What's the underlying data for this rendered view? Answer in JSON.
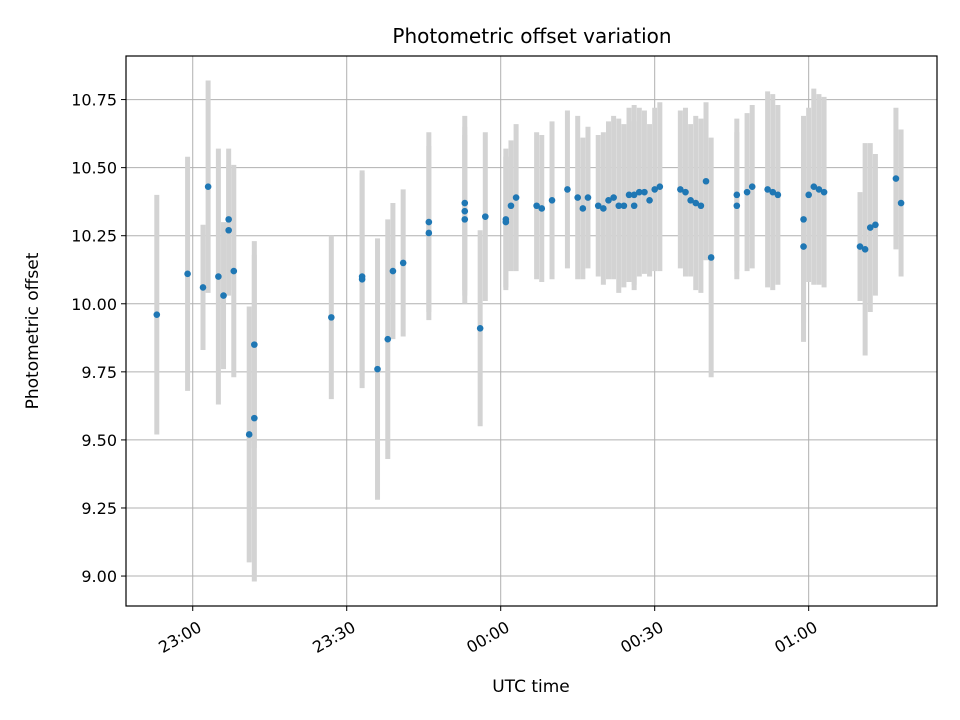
{
  "chart_data": {
    "type": "scatter",
    "title": "Photometric offset variation",
    "xlabel": "UTC time",
    "ylabel": "Photometric offset",
    "x_tick_labels": [
      "23:00",
      "23:30",
      "00:00",
      "00:30",
      "01:00"
    ],
    "y_tick_labels": [
      "9.00",
      "9.25",
      "9.50",
      "9.75",
      "10.00",
      "10.25",
      "10.50",
      "10.75"
    ],
    "xlim": [
      "22:47",
      "01:25"
    ],
    "ylim": [
      8.89,
      10.91
    ],
    "grid": true,
    "colors": {
      "marker": "#1f77b4",
      "errorbar": "#d3d3d3",
      "grid": "#b0b0b0"
    },
    "series": [
      {
        "x": [
          "22:53",
          "22:59",
          "23:02",
          "23:03",
          "23:05",
          "23:06",
          "23:07",
          "23:07",
          "23:08",
          "23:11",
          "23:12",
          "23:12",
          "23:27",
          "23:33",
          "23:33",
          "23:36",
          "23:38",
          "23:39",
          "23:41",
          "23:46",
          "23:46",
          "23:53",
          "23:53",
          "23:53",
          "23:56",
          "23:57",
          "00:01",
          "00:01",
          "00:02",
          "00:03",
          "00:07",
          "00:08",
          "00:10",
          "00:13",
          "00:15",
          "00:16",
          "00:17",
          "00:19",
          "00:20",
          "00:21",
          "00:22",
          "00:23",
          "00:24",
          "00:25",
          "00:26",
          "00:26",
          "00:27",
          "00:28",
          "00:29",
          "00:30",
          "00:31",
          "00:35",
          "00:36",
          "00:37",
          "00:38",
          "00:39",
          "00:40",
          "00:41",
          "00:46",
          "00:46",
          "00:48",
          "00:49",
          "00:52",
          "00:53",
          "00:54",
          "00:59",
          "00:59",
          "01:00",
          "01:01",
          "01:02",
          "01:03",
          "01:10",
          "01:11",
          "01:12",
          "01:13",
          "01:17",
          "01:18"
        ],
        "y": [
          9.96,
          10.11,
          10.06,
          10.43,
          10.1,
          10.03,
          10.27,
          10.31,
          10.12,
          9.52,
          9.85,
          9.58,
          9.95,
          10.1,
          10.09,
          9.76,
          9.87,
          10.12,
          10.15,
          10.3,
          10.26,
          10.31,
          10.37,
          10.34,
          9.91,
          10.32,
          10.31,
          10.3,
          10.36,
          10.39,
          10.36,
          10.35,
          10.38,
          10.42,
          10.39,
          10.35,
          10.39,
          10.36,
          10.35,
          10.38,
          10.39,
          10.36,
          10.36,
          10.4,
          10.4,
          10.36,
          10.41,
          10.41,
          10.38,
          10.42,
          10.43,
          10.42,
          10.41,
          10.38,
          10.37,
          10.36,
          10.45,
          10.17,
          10.36,
          10.4,
          10.41,
          10.43,
          10.42,
          10.41,
          10.4,
          10.21,
          10.31,
          10.4,
          10.43,
          10.42,
          10.41,
          10.21,
          10.2,
          10.28,
          10.29,
          10.46,
          10.37
        ],
        "err": [
          0.44,
          0.43,
          0.23,
          0.39,
          0.47,
          0.27,
          0.24,
          0.26,
          0.39,
          0.47,
          0.38,
          0.6,
          0.3,
          0.38,
          0.4,
          0.48,
          0.44,
          0.25,
          0.27,
          0.33,
          0.32,
          0.31,
          0.32,
          0.31,
          0.36,
          0.31,
          0.26,
          0.24,
          0.24,
          0.27,
          0.27,
          0.27,
          0.29,
          0.29,
          0.3,
          0.26,
          0.26,
          0.26,
          0.28,
          0.29,
          0.3,
          0.32,
          0.3,
          0.32,
          0.33,
          0.31,
          0.31,
          0.3,
          0.28,
          0.3,
          0.31,
          0.29,
          0.31,
          0.28,
          0.32,
          0.32,
          0.29,
          0.44,
          0.27,
          0.28,
          0.29,
          0.3,
          0.36,
          0.36,
          0.33,
          0.35,
          0.38,
          0.32,
          0.36,
          0.35,
          0.35,
          0.2,
          0.39,
          0.31,
          0.26,
          0.26,
          0.27
        ]
      }
    ]
  }
}
